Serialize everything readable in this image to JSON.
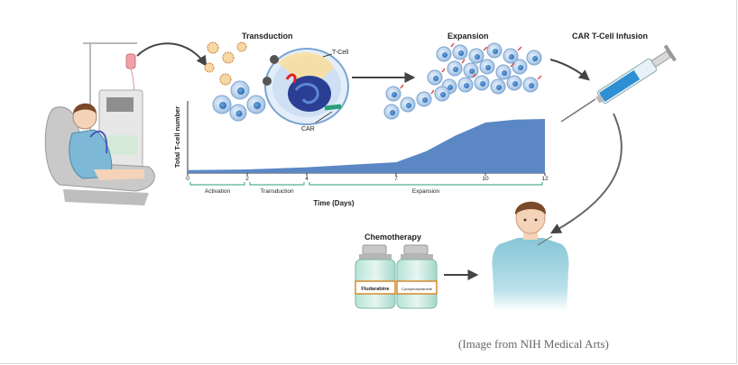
{
  "stages": {
    "transduction": "Transduction",
    "expansion": "Expansion",
    "infusion": "CAR T-Cell Infusion",
    "chemotherapy": "Chemotherapy"
  },
  "labels": {
    "t_cell": "T-Cell",
    "car": "CAR",
    "fludarabine": "Fludarabine",
    "cyclophosphamide": "Cyclophosphamide"
  },
  "chart_data": {
    "type": "area",
    "ylabel": "Total T-cell number",
    "xlabel": "Time (Days)",
    "x_ticks": [
      "0",
      "2",
      "4",
      "7",
      "10",
      "12"
    ],
    "x": [
      0,
      2,
      4,
      7,
      8,
      9,
      10,
      11,
      12
    ],
    "values": [
      4,
      5,
      8,
      15,
      30,
      52,
      70,
      74,
      75
    ],
    "xlim": [
      0,
      12
    ],
    "ylim": [
      0,
      100
    ],
    "phases": [
      {
        "label": "Activation",
        "start": 0,
        "end": 2
      },
      {
        "label": "Transduction",
        "start": 2,
        "end": 4
      },
      {
        "label": "Expansion",
        "start": 4,
        "end": 12
      }
    ],
    "colors": {
      "fill": "#5b87c5",
      "phase": "#2aa07a"
    }
  },
  "caption": "(Image from NIH Medical Arts)"
}
